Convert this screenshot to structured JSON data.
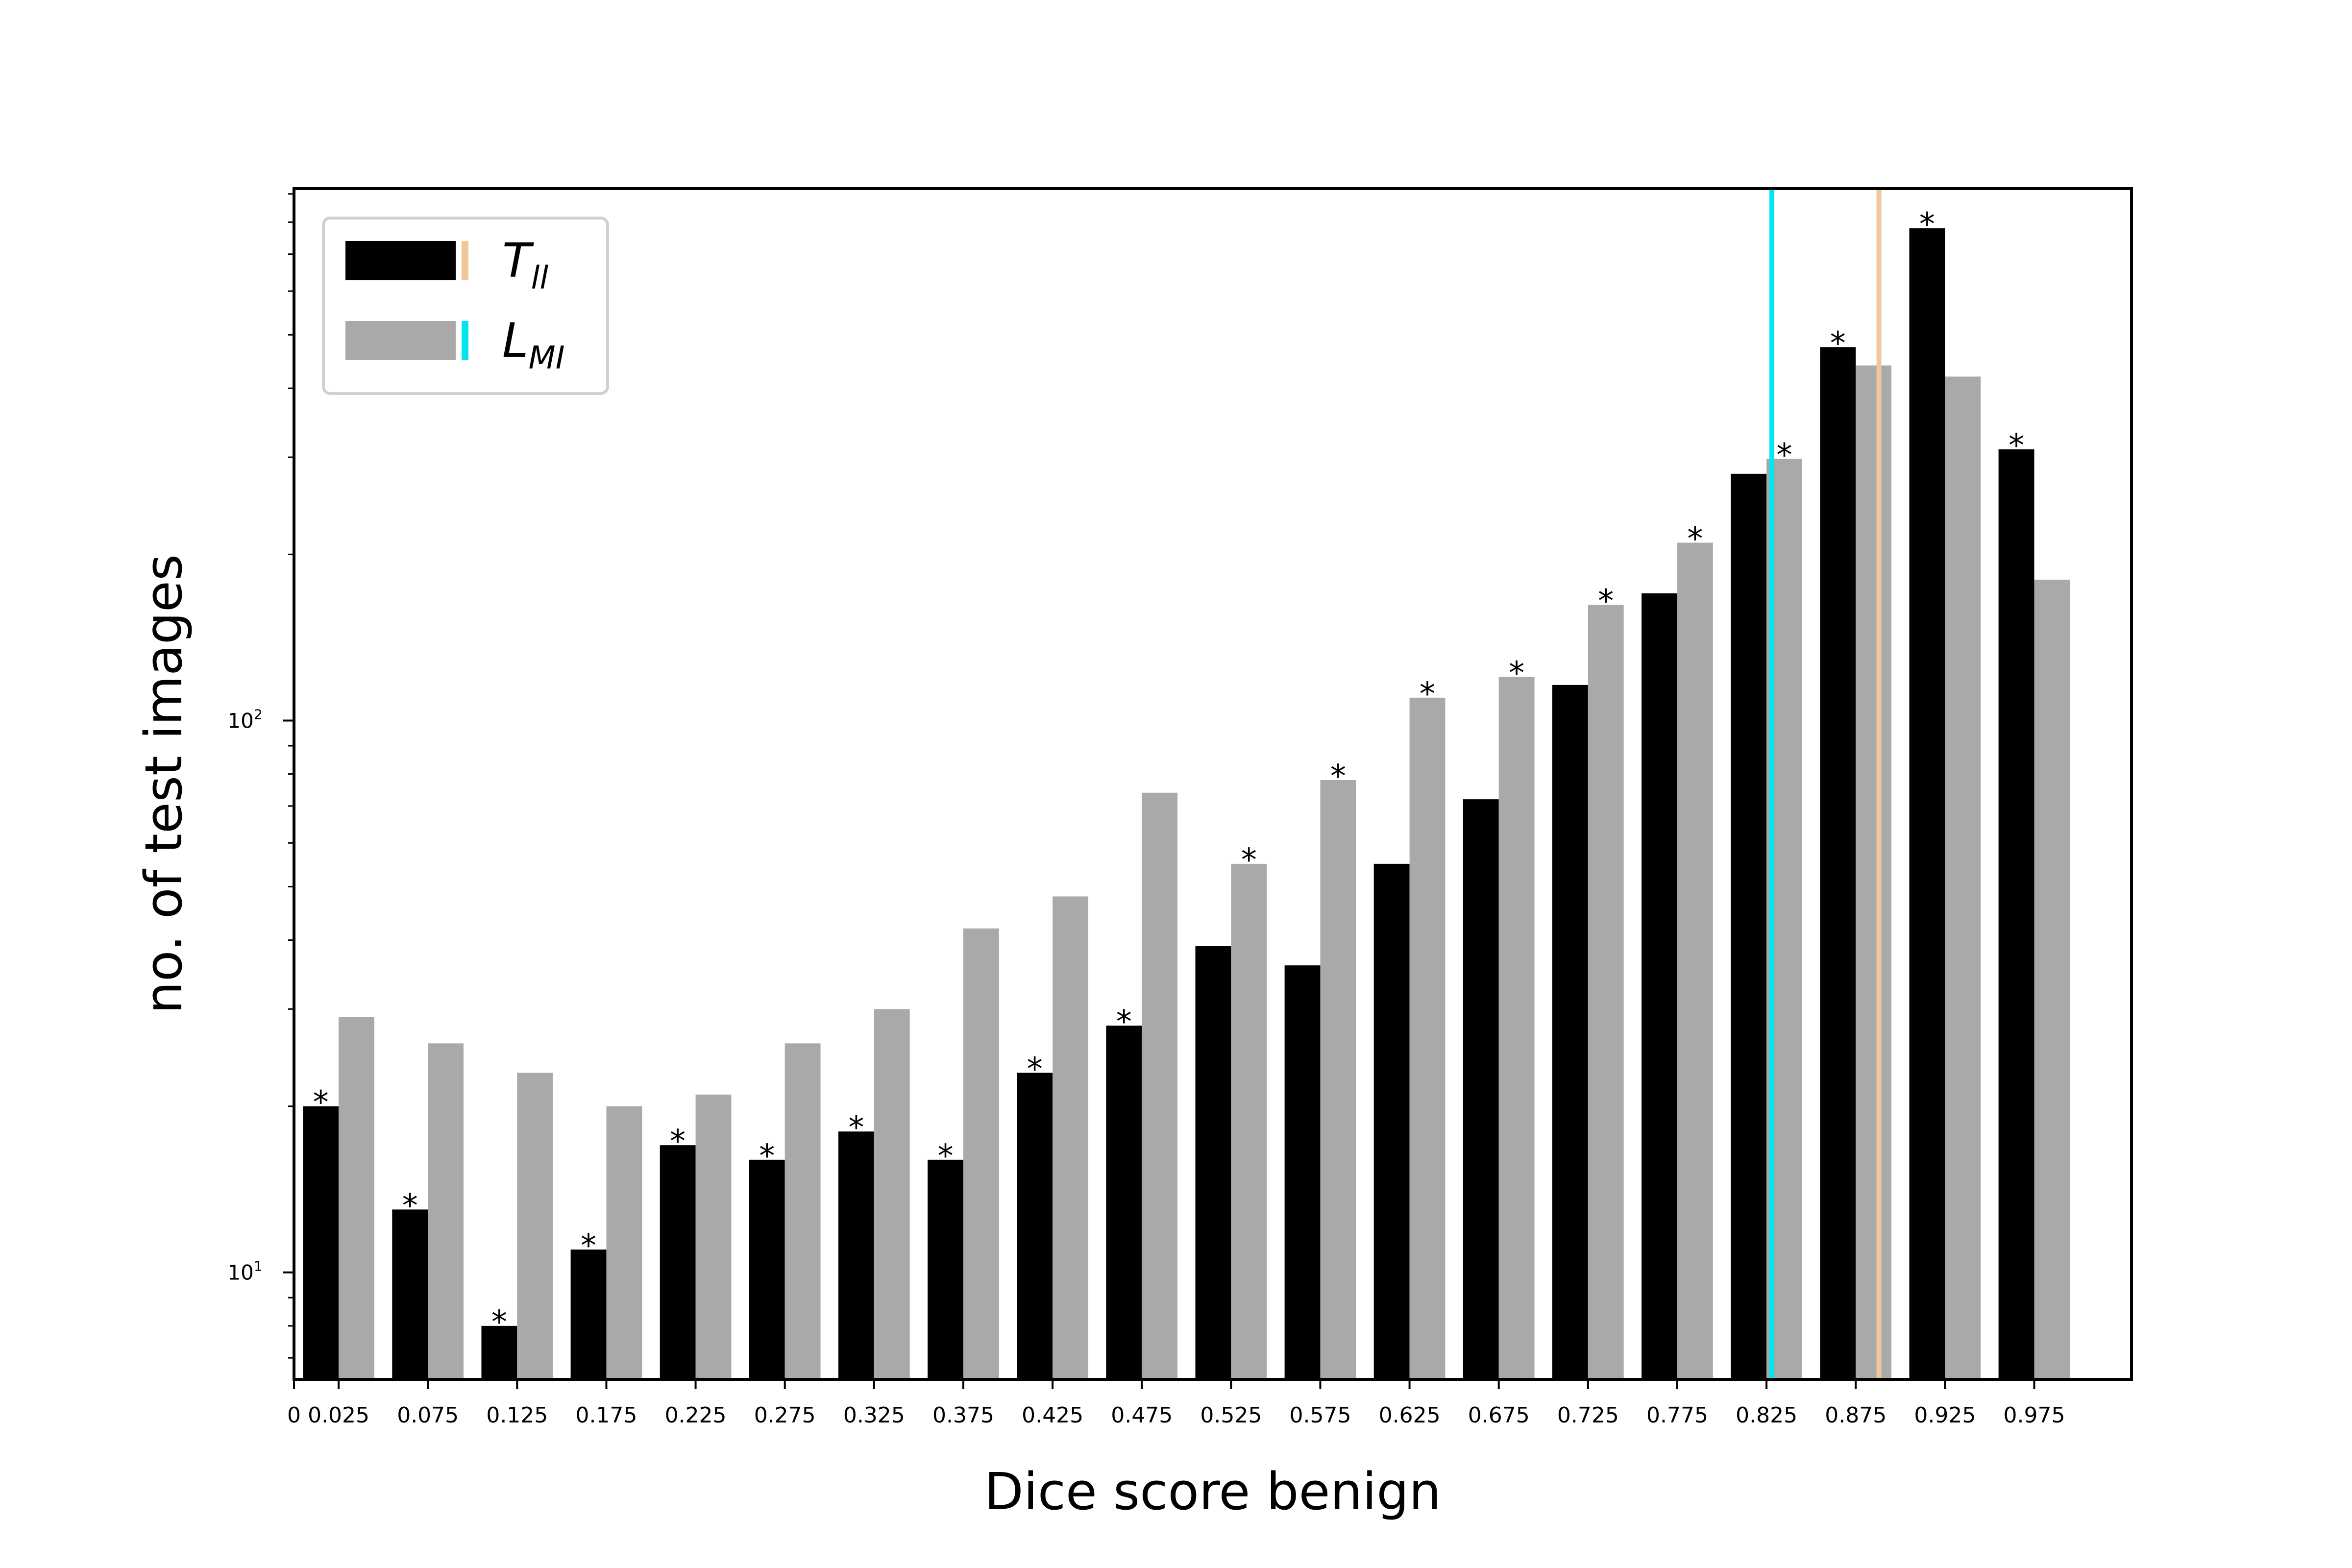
{
  "chart_data": {
    "type": "bar",
    "xlabel": "Dice score benign",
    "ylabel": "no. of test images",
    "y_scale": "log",
    "ylim": [
      6.4,
      920
    ],
    "y_ticks": [
      {
        "value": 10,
        "base": "10",
        "exp": "1"
      },
      {
        "value": 100,
        "base": "10",
        "exp": "2"
      }
    ],
    "x_tick_labels": [
      "0",
      "0.025",
      "0.075",
      "0.125",
      "0.175",
      "0.225",
      "0.275",
      "0.325",
      "0.375",
      "0.425",
      "0.475",
      "0.525",
      "0.575",
      "0.625",
      "0.675",
      "0.725",
      "0.775",
      "0.825",
      "0.875",
      "0.925",
      "0.975"
    ],
    "categories": [
      "0.025",
      "0.075",
      "0.125",
      "0.175",
      "0.225",
      "0.275",
      "0.325",
      "0.375",
      "0.425",
      "0.475",
      "0.525",
      "0.575",
      "0.625",
      "0.675",
      "0.725",
      "0.775",
      "0.825",
      "0.875",
      "0.925",
      "0.975"
    ],
    "series": [
      {
        "name_main": "T",
        "name_sub": "ll",
        "color": "#000000",
        "values": [
          20,
          13,
          8,
          11,
          17,
          16,
          18,
          16,
          23,
          28,
          39,
          36,
          55,
          72,
          116,
          170,
          280,
          475,
          780,
          310
        ],
        "stars": [
          true,
          true,
          true,
          true,
          true,
          true,
          true,
          true,
          true,
          true,
          false,
          false,
          false,
          false,
          false,
          false,
          false,
          true,
          true,
          true
        ]
      },
      {
        "name_main": "L",
        "name_sub": "MI",
        "color": "#a9a9a9",
        "values": [
          29,
          26,
          23,
          20,
          21,
          26,
          30,
          42,
          48,
          74,
          55,
          78,
          110,
          120,
          162,
          210,
          298,
          440,
          420,
          180
        ],
        "stars": [
          false,
          false,
          false,
          false,
          false,
          false,
          false,
          false,
          false,
          false,
          true,
          true,
          true,
          true,
          true,
          true,
          true,
          false,
          false,
          false
        ]
      }
    ],
    "vlines": [
      {
        "x": 0.828,
        "color": "#00e5ee",
        "series": "L_MI"
      },
      {
        "x": 0.888,
        "color": "#f0c898",
        "series": "T_ll"
      }
    ],
    "legend_position": "top-left",
    "grid": false
  },
  "annotation_symbol": "*"
}
